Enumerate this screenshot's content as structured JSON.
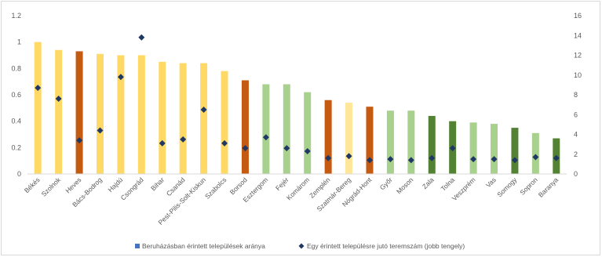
{
  "chart_data": {
    "type": "bar",
    "title": "",
    "xlabel": "",
    "ylabel": "",
    "ylim": [
      0,
      1.2
    ],
    "y2lim": [
      0,
      16
    ],
    "yticks": [
      "0",
      "0.2",
      "0.4",
      "0.6",
      "0.8",
      "1",
      "1.2"
    ],
    "y2ticks": [
      "0",
      "2",
      "4",
      "6",
      "8",
      "10",
      "12",
      "14",
      "16"
    ],
    "grid": false,
    "legend_position": "bottom",
    "categories": [
      "Békés",
      "Szolnok",
      "Heves",
      "Bács-Bodrog",
      "Hajdú",
      "Csongrád",
      "Bihar",
      "Csanád",
      "Pest-Pilis-Solt-Kiskun",
      "Szabolcs",
      "Borsod",
      "Esztergom",
      "Fejér",
      "Komárom",
      "Zemplén",
      "Szatmár-Bereg",
      "Nógrád-Hont",
      "Győr",
      "Moson",
      "Zala",
      "Tolna",
      "Veszprém",
      "Vas",
      "Somogy",
      "Sopron",
      "Baranya"
    ],
    "series": [
      {
        "name": "Beruházásban érintett települések aránya",
        "kind": "bar",
        "axis": "left",
        "values": [
          1.0,
          0.94,
          0.93,
          0.91,
          0.9,
          0.9,
          0.85,
          0.84,
          0.84,
          0.78,
          0.71,
          0.68,
          0.68,
          0.62,
          0.56,
          0.54,
          0.51,
          0.48,
          0.48,
          0.44,
          0.4,
          0.39,
          0.38,
          0.35,
          0.31,
          0.27
        ],
        "colors": [
          "#ffd966",
          "#ffd966",
          "#c55a11",
          "#ffd966",
          "#ffd966",
          "#ffd966",
          "#ffd966",
          "#ffd966",
          "#ffd966",
          "#ffd966",
          "#c55a11",
          "#a9d18e",
          "#a9d18e",
          "#a9d18e",
          "#c55a11",
          "#ffe699",
          "#c55a11",
          "#a9d18e",
          "#a9d18e",
          "#548235",
          "#548235",
          "#a9d18e",
          "#a9d18e",
          "#548235",
          "#a9d18e",
          "#548235"
        ],
        "legend_color": "#4472c4"
      },
      {
        "name": "Egy érintett településre jutó teremszám (jobb tengely)",
        "kind": "scatter",
        "axis": "right",
        "marker": "diamond",
        "color": "#203864",
        "values": [
          8.7,
          7.6,
          3.4,
          4.4,
          9.8,
          13.8,
          3.1,
          3.5,
          6.5,
          3.1,
          2.6,
          3.7,
          2.6,
          2.3,
          1.6,
          1.8,
          1.4,
          1.5,
          1.4,
          1.6,
          2.6,
          1.5,
          1.5,
          1.4,
          1.7,
          1.6
        ]
      }
    ]
  }
}
